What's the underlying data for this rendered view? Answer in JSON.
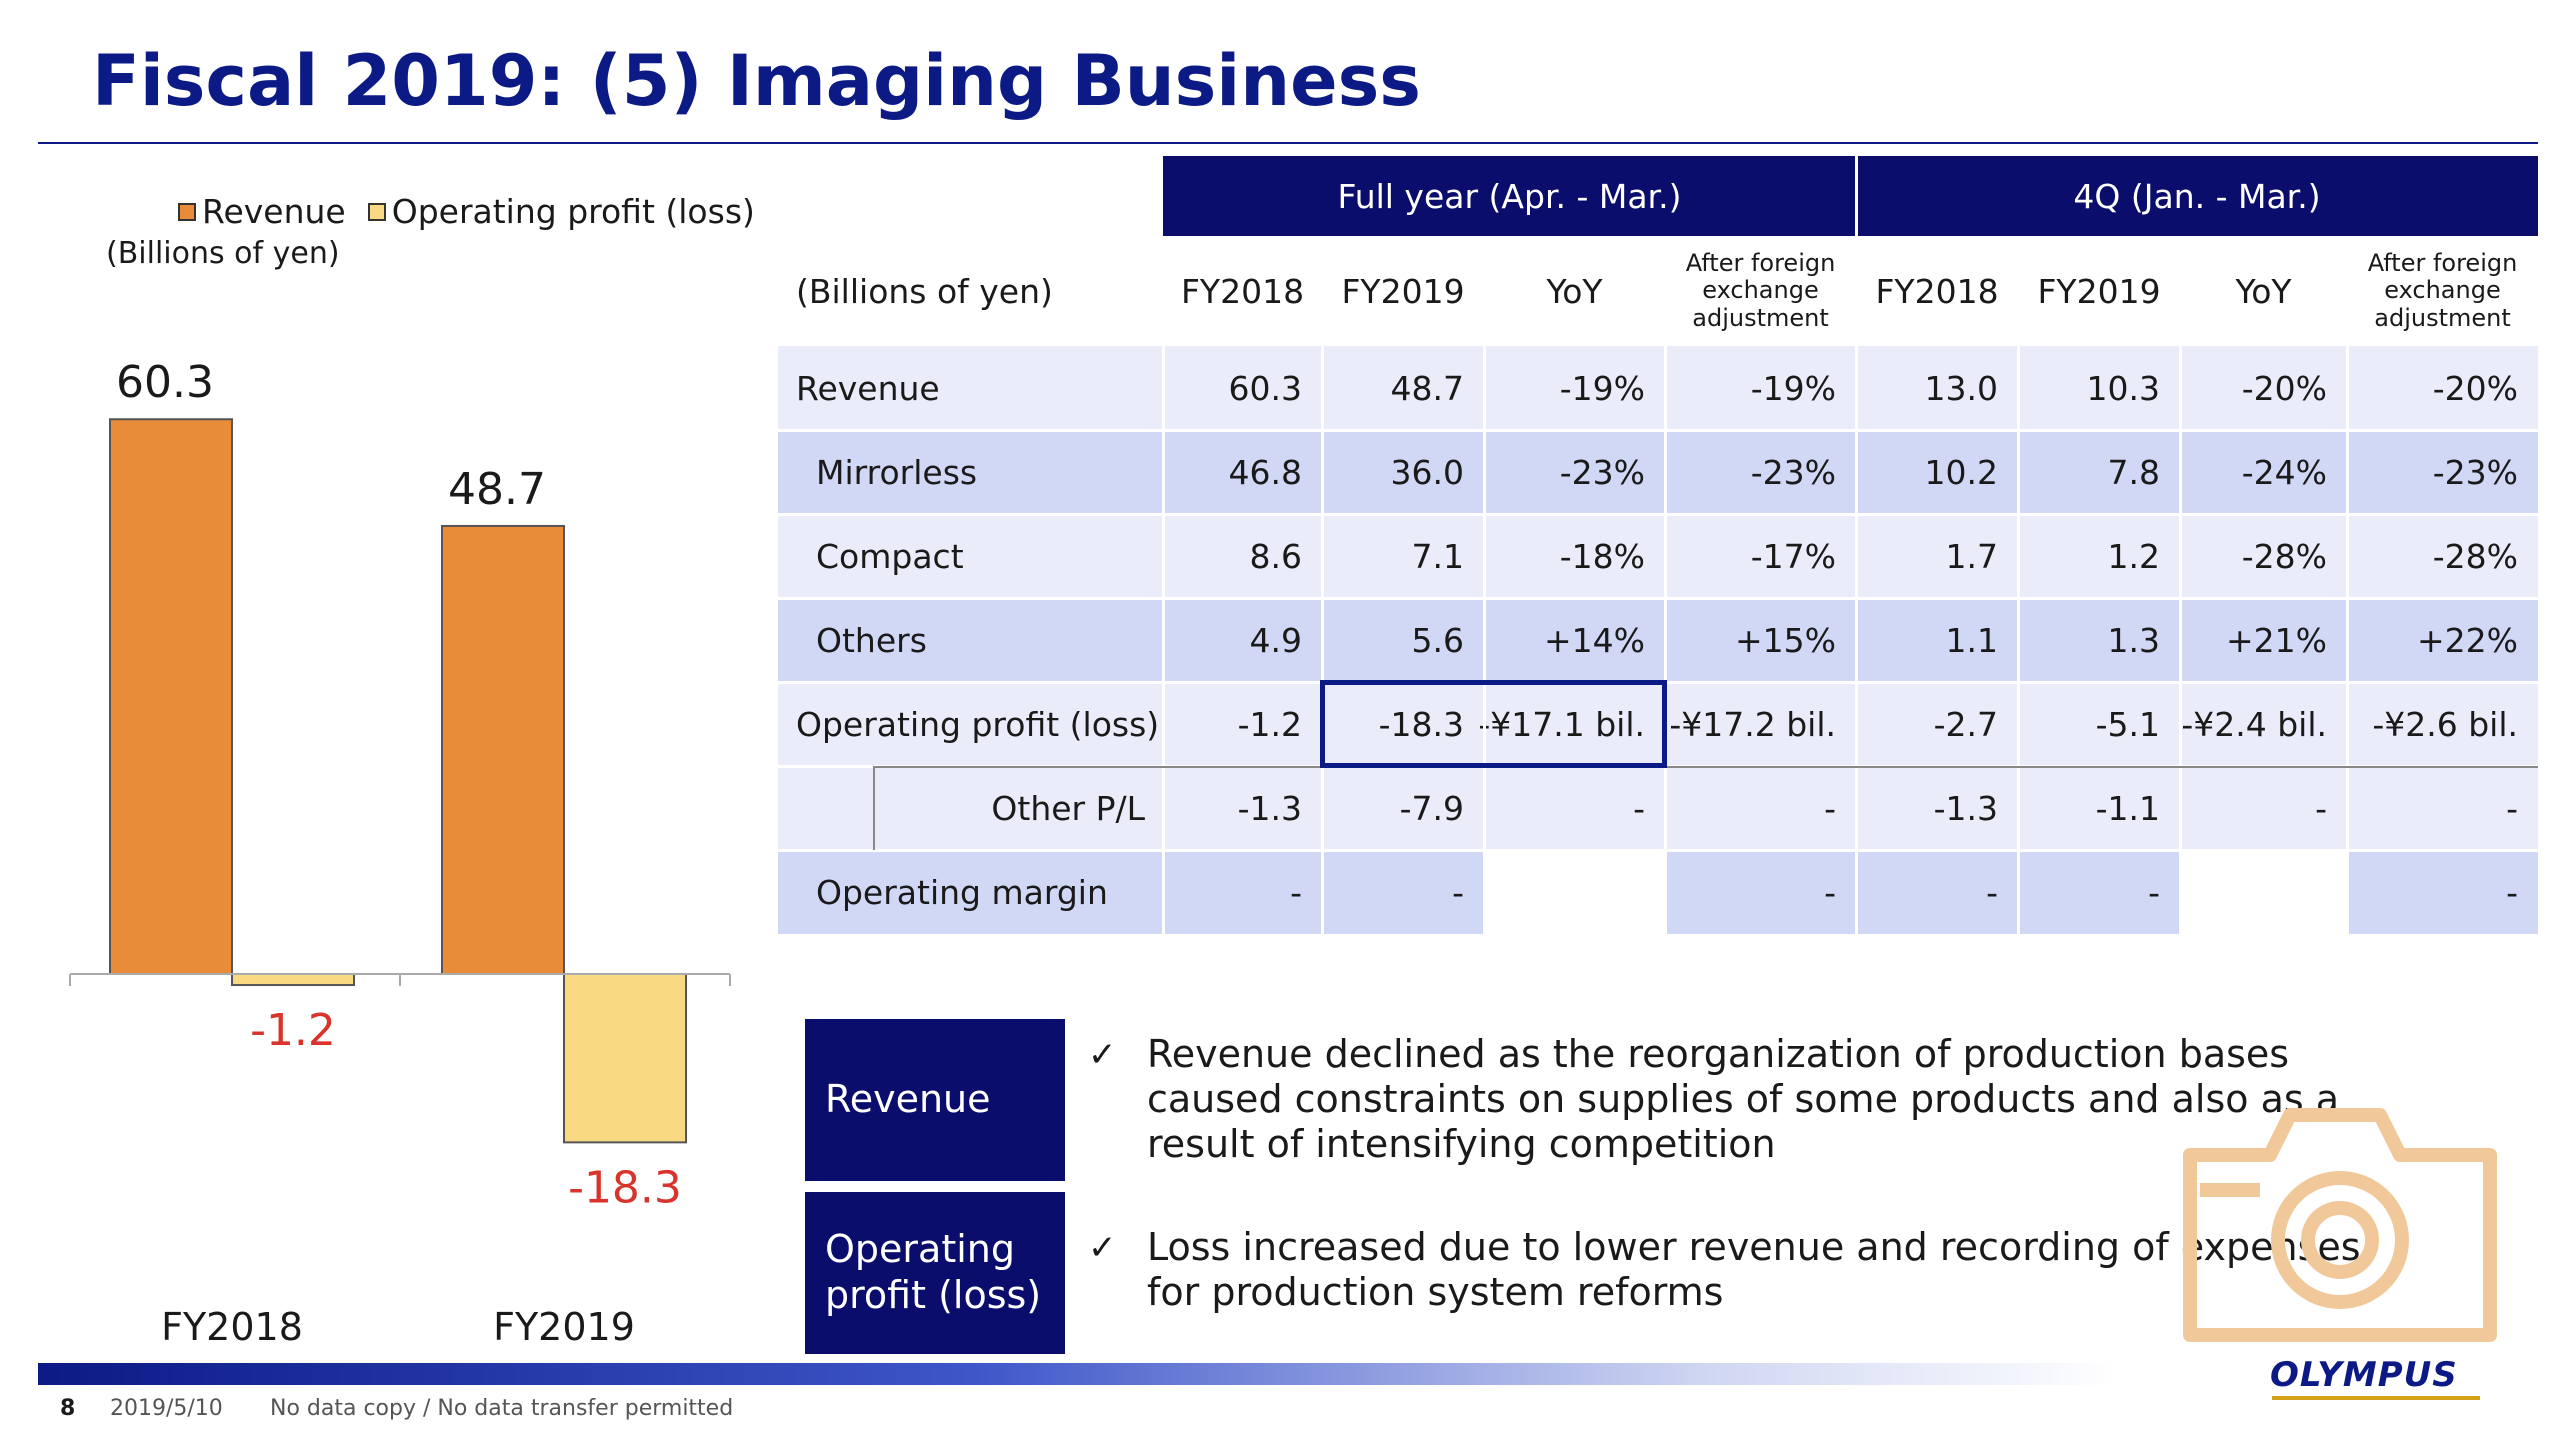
{
  "title": "Fiscal 2019: (5) Imaging Business",
  "legend": {
    "revenue": "Revenue",
    "operating_profit": "Operating profit (loss)"
  },
  "chart_unit": "(Billions of yen)",
  "colors": {
    "navy": "#0a0d6b",
    "title": "#0c1a85",
    "revenue_bar": "#e88c3a",
    "profit_bar": "#fad983",
    "negative_label": "#d9342b",
    "row_light": "#eaecfa",
    "row_dark": "#d0d8f6",
    "camera_icon": "#f0c89a"
  },
  "chart_data": {
    "type": "bar",
    "categories": [
      "FY2018",
      "FY2019"
    ],
    "series": [
      {
        "name": "Revenue",
        "values": [
          60.3,
          48.7
        ]
      },
      {
        "name": "Operating profit (loss)",
        "values": [
          -1.2,
          -18.3
        ]
      }
    ],
    "data_labels": [
      [
        "60.3",
        "48.7"
      ],
      [
        "-1.2",
        "-18.3"
      ]
    ],
    "ylim": [
      -25,
      65
    ]
  },
  "table": {
    "group_headers": [
      "Full year (Apr. - Mar.)",
      "4Q (Jan. - Mar.)"
    ],
    "unit_label": "(Billions of yen)",
    "columns": [
      "FY2018",
      "FY2019",
      "YoY",
      "After foreign exchange adjustment",
      "FY2018",
      "FY2019",
      "YoY",
      "After foreign exchange adjustment"
    ],
    "rows": [
      {
        "label": "Revenue",
        "values": [
          "60.3",
          "48.7",
          "-19%",
          "-19%",
          "13.0",
          "10.3",
          "-20%",
          "-20%"
        ]
      },
      {
        "label": "Mirrorless",
        "values": [
          "46.8",
          "36.0",
          "-23%",
          "-23%",
          "10.2",
          "7.8",
          "-24%",
          "-23%"
        ]
      },
      {
        "label": "Compact",
        "values": [
          "8.6",
          "7.1",
          "-18%",
          "-17%",
          "1.7",
          "1.2",
          "-28%",
          "-28%"
        ]
      },
      {
        "label": "Others",
        "values": [
          "4.9",
          "5.6",
          "+14%",
          "+15%",
          "1.1",
          "1.3",
          "+21%",
          "+22%"
        ]
      },
      {
        "label": "Operating profit (loss)",
        "values": [
          "-1.2",
          "-18.3",
          "-¥17.1 bil.",
          "-¥17.2 bil.",
          "-2.7",
          "-5.1",
          "-¥2.4 bil.",
          "-¥2.6 bil."
        ]
      },
      {
        "label": "Other P/L",
        "values": [
          "-1.3",
          "-7.9",
          "-",
          "-",
          "-1.3",
          "-1.1",
          "-",
          "-"
        ]
      },
      {
        "label": "Operating margin",
        "values": [
          "-",
          "-",
          "",
          "-",
          "-",
          "-",
          "",
          "-"
        ]
      }
    ]
  },
  "comments": [
    {
      "heading": "Revenue",
      "text": "Revenue declined as the reorganization of production bases caused constraints on supplies of some products and also as a result of intensifying competition"
    },
    {
      "heading": "Operating profit (loss)",
      "text": "Loss increased due to lower revenue and recording of expenses for production system reforms"
    }
  ],
  "check_mark": "✓",
  "footer": {
    "page": "8",
    "date": "2019/5/10",
    "note": "No data copy / No data transfer permitted"
  },
  "logo_text": "OLYMPUS",
  "camera_icon": "camera-icon"
}
